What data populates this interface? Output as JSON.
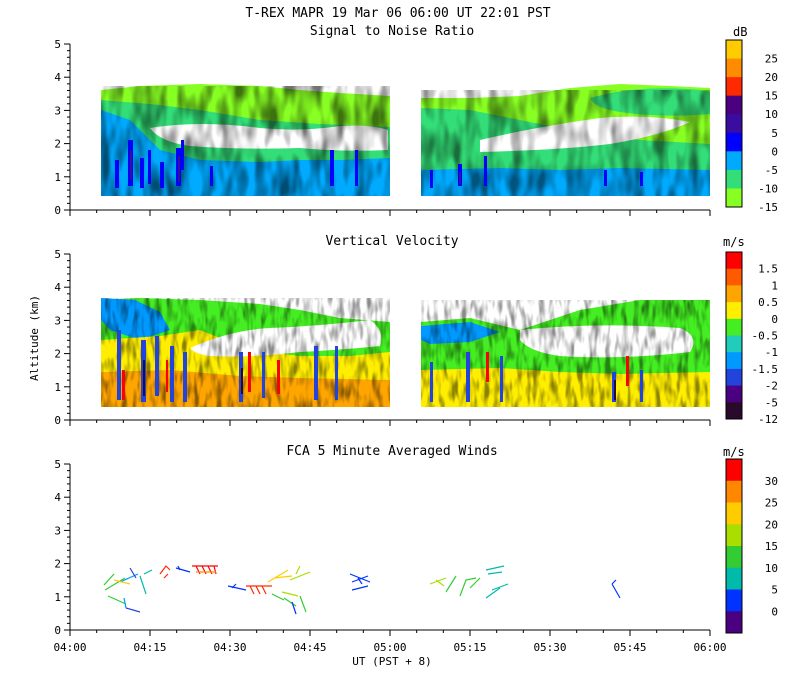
{
  "header": {
    "title": "T-REX   MAPR 19 Mar 06   06:00 UT   22:01   PST"
  },
  "xaxis": {
    "label": "UT  (PST + 8)",
    "ticks": [
      "04:00",
      "04:15",
      "04:30",
      "04:45",
      "05:00",
      "05:15",
      "05:30",
      "05:45",
      "06:00"
    ]
  },
  "yaxis": {
    "label": "Altitude (km)",
    "ticks": [
      "0",
      "1",
      "2",
      "3",
      "4",
      "5"
    ]
  },
  "chart_data": [
    {
      "type": "heatmap",
      "title": "Signal to Noise Ratio",
      "unit": "dB",
      "ylim": [
        0,
        5
      ],
      "colorbar": {
        "levels": [
          "25",
          "20",
          "15",
          "10",
          "5",
          "0",
          "-5",
          "-10",
          "-15"
        ],
        "colors": [
          "#ffcc00",
          "#ff8c00",
          "#ff2a00",
          "#4b0082",
          "#3a0ca0",
          "#0000ff",
          "#00aaff",
          "#33dd77",
          "#88ff22"
        ]
      }
    },
    {
      "type": "heatmap",
      "title": "Vertical Velocity",
      "unit": "m/s",
      "ylim": [
        0,
        5
      ],
      "colorbar": {
        "levels": [
          "1.5",
          "1",
          "0.5",
          "0",
          "-0.5",
          "-1",
          "-1.5",
          "-2",
          "-5",
          "-12"
        ],
        "colors": [
          "#ff0000",
          "#ff5a00",
          "#ffa500",
          "#ffee00",
          "#44ee22",
          "#22ccbb",
          "#0099ff",
          "#2244dd",
          "#4b0082",
          "#2a0a2a"
        ]
      }
    },
    {
      "type": "scatter",
      "title": "FCA 5 Minute Averaged Winds",
      "unit": "m/s",
      "ylim": [
        0,
        5
      ],
      "colorbar": {
        "levels": [
          "30",
          "25",
          "20",
          "15",
          "10",
          "5",
          "0"
        ],
        "colors": [
          "#ff0000",
          "#ff8800",
          "#ffcc00",
          "#aadd00",
          "#33cc33",
          "#00bbaa",
          "#0033ff",
          "#4b0082"
        ]
      }
    }
  ]
}
